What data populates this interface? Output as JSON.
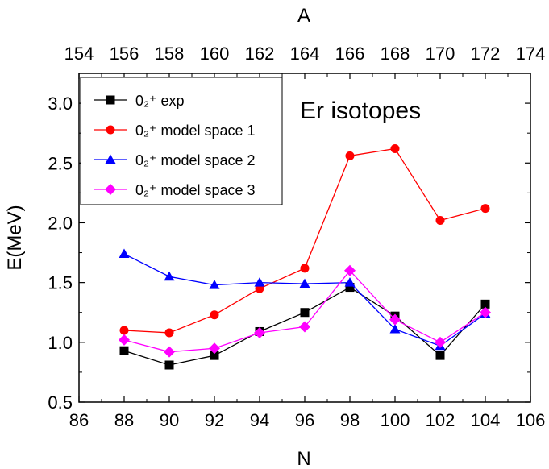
{
  "chart_data": {
    "type": "line",
    "annotation": "Er isotopes",
    "xlabel": "N",
    "ylabel": "E(MeV)",
    "x2label": "A",
    "xlim": [
      86,
      106
    ],
    "ylim": [
      0.5,
      3.25
    ],
    "x_ticks": [
      86,
      88,
      90,
      92,
      94,
      96,
      98,
      100,
      102,
      104,
      106
    ],
    "y_ticks": [
      0.5,
      1.0,
      1.5,
      2.0,
      2.5,
      3.0
    ],
    "x2_ticks": [
      154,
      156,
      158,
      160,
      162,
      164,
      166,
      168,
      170,
      172,
      174
    ],
    "x": [
      88,
      90,
      92,
      94,
      96,
      98,
      100,
      102,
      104
    ],
    "legend_position": "top-left",
    "grid": false,
    "series": [
      {
        "name": "0₂⁺ exp",
        "color": "#000000",
        "marker": "square",
        "values": [
          0.93,
          0.81,
          0.89,
          1.09,
          1.25,
          1.46,
          1.22,
          0.89,
          1.32
        ]
      },
      {
        "name": "0₂⁺ model space 1",
        "color": "#ff0000",
        "marker": "circle",
        "values": [
          1.1,
          1.08,
          1.23,
          1.45,
          1.62,
          2.56,
          2.62,
          2.02,
          2.12
        ]
      },
      {
        "name": "0₂⁺ model space 2",
        "color": "#0000ff",
        "marker": "triangle",
        "values": [
          1.74,
          1.55,
          1.48,
          1.5,
          1.49,
          1.5,
          1.11,
          0.97,
          1.24
        ]
      },
      {
        "name": "0₂⁺ model space 3",
        "color": "#ff00ff",
        "marker": "diamond",
        "values": [
          1.02,
          0.92,
          0.95,
          1.08,
          1.13,
          1.6,
          1.19,
          1.0,
          1.25
        ]
      }
    ]
  }
}
